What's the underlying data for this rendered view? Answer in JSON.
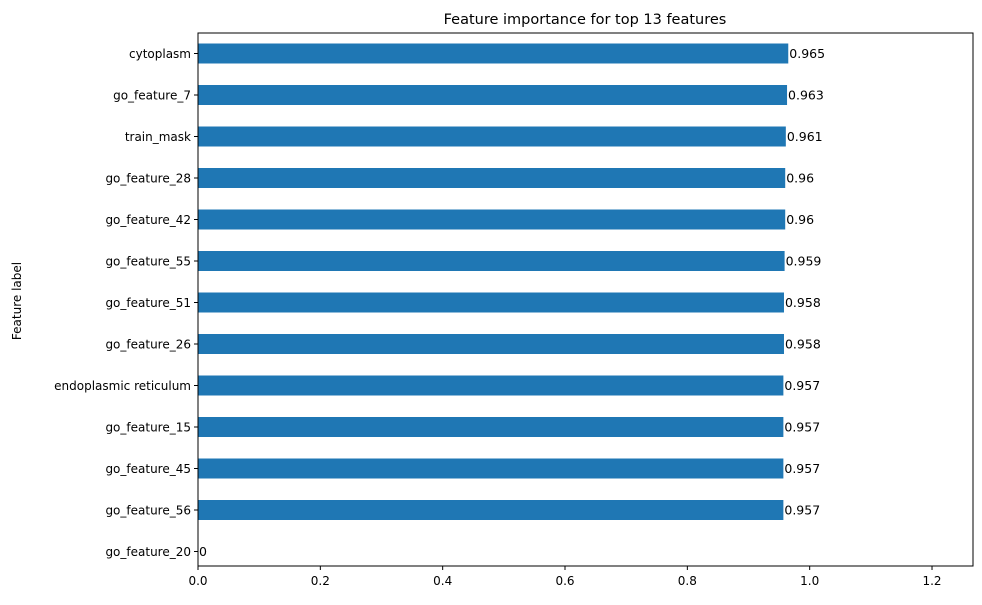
{
  "chart_data": {
    "type": "bar",
    "orientation": "horizontal",
    "title": "Feature importance for top 13 features",
    "xlabel": "",
    "ylabel": "Feature label",
    "xlim": [
      0,
      1.267
    ],
    "xticks": [
      0.0,
      0.2,
      0.4,
      0.6,
      0.8,
      1.0,
      1.2
    ],
    "xtick_labels": [
      "0.0",
      "0.2",
      "0.4",
      "0.6",
      "0.8",
      "1.0",
      "1.2"
    ],
    "grid": false,
    "bar_color": "#1f77b4",
    "categories": [
      "cytoplasm",
      "go_feature_7",
      "train_mask",
      "go_feature_28",
      "go_feature_42",
      "go_feature_55",
      "go_feature_51",
      "go_feature_26",
      "endoplasmic reticulum",
      "go_feature_15",
      "go_feature_45",
      "go_feature_56",
      "go_feature_20"
    ],
    "values": [
      0.965,
      0.963,
      0.961,
      0.96,
      0.96,
      0.959,
      0.958,
      0.958,
      0.957,
      0.957,
      0.957,
      0.957,
      0
    ],
    "data_labels": [
      "0.965",
      "0.963",
      "0.961",
      "0.96",
      "0.96",
      "0.959",
      "0.958",
      "0.958",
      "0.957",
      "0.957",
      "0.957",
      "0.957",
      "0"
    ]
  }
}
